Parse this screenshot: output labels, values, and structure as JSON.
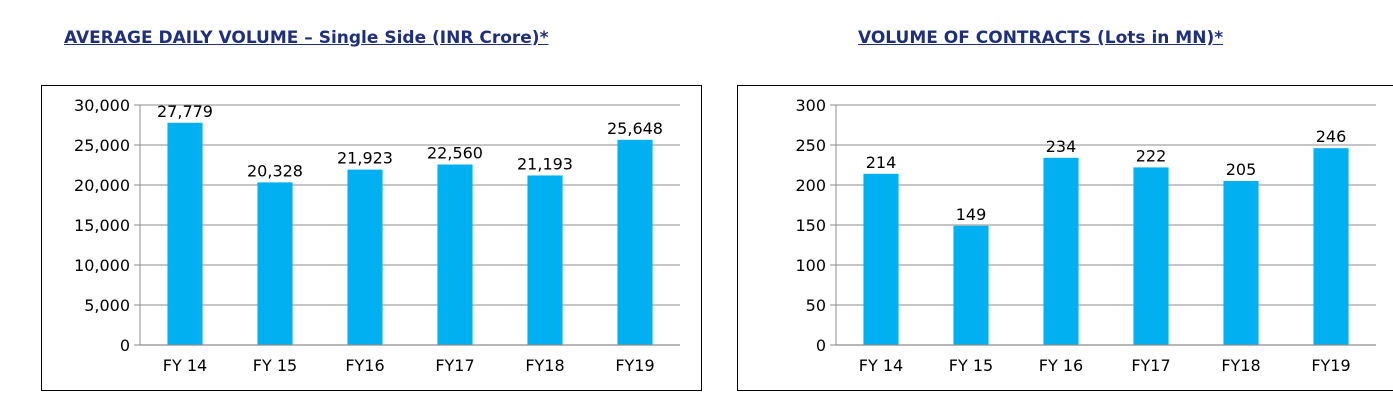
{
  "chart_data": [
    {
      "type": "bar",
      "title": "AVERAGE DAILY VOLUME – Single Side (INR Crore)*",
      "categories": [
        "FY 14",
        "FY 15",
        "FY16",
        "FY17",
        "FY18",
        "FY19"
      ],
      "values": [
        27779,
        20328,
        21923,
        22560,
        21193,
        25648
      ],
      "value_labels": [
        "27,779",
        "20,328",
        "21,923",
        "22,560",
        "21,193",
        "25,648"
      ],
      "y_ticks": [
        0,
        5000,
        10000,
        15000,
        20000,
        25000,
        30000
      ],
      "y_tick_labels": [
        "0",
        "5,000",
        "10,000",
        "15,000",
        "20,000",
        "25,000",
        "30,000"
      ],
      "ylim": [
        0,
        30000
      ],
      "grid": true,
      "bar_color": "#00b0f0"
    },
    {
      "type": "bar",
      "title": "VOLUME OF CONTRACTS (Lots in MN)*",
      "categories": [
        "FY 14",
        "FY 15",
        "FY 16",
        "FY17",
        "FY18",
        "FY19"
      ],
      "values": [
        214,
        149,
        234,
        222,
        205,
        246
      ],
      "value_labels": [
        "214",
        "149",
        "234",
        "222",
        "205",
        "246"
      ],
      "y_ticks": [
        0,
        50,
        100,
        150,
        200,
        250,
        300
      ],
      "y_tick_labels": [
        "0",
        "50",
        "100",
        "150",
        "200",
        "250",
        "300"
      ],
      "ylim": [
        0,
        300
      ],
      "grid": true,
      "bar_color": "#00b0f0"
    }
  ]
}
